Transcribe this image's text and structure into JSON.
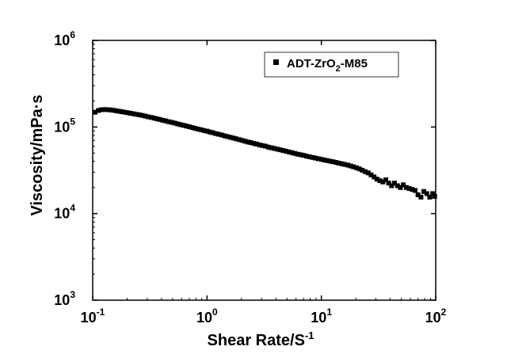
{
  "chart_data": {
    "type": "scatter",
    "xlabel_main": "Shear Rate/S",
    "xlabel_sup": "-1",
    "ylabel": "Viscosity/mPa·s",
    "x_scale": "log",
    "y_scale": "log",
    "xlim": [
      0.1,
      100
    ],
    "ylim": [
      1000,
      1000000
    ],
    "x_ticks": [
      {
        "value": 0.1,
        "base": "10",
        "exp": "-1"
      },
      {
        "value": 1,
        "base": "10",
        "exp": "0"
      },
      {
        "value": 10,
        "base": "10",
        "exp": "1"
      },
      {
        "value": 100,
        "base": "10",
        "exp": "2"
      }
    ],
    "y_ticks": [
      {
        "value": 1000,
        "base": "10",
        "exp": "3"
      },
      {
        "value": 10000,
        "base": "10",
        "exp": "4"
      },
      {
        "value": 100000,
        "base": "10",
        "exp": "5"
      },
      {
        "value": 1000000,
        "base": "10",
        "exp": "6"
      }
    ],
    "grid": false,
    "legend_position": "top-right",
    "series": [
      {
        "name_main": "ADT-ZrO",
        "name_sub": "2",
        "name_tail": "-M85",
        "marker": "square",
        "color": "#000000",
        "points": [
          [
            0.105,
            148000
          ],
          [
            0.112,
            155000
          ],
          [
            0.119,
            158000
          ],
          [
            0.126,
            159000
          ],
          [
            0.134,
            158500
          ],
          [
            0.142,
            157500
          ],
          [
            0.151,
            156000
          ],
          [
            0.16,
            154000
          ],
          [
            0.17,
            152000
          ],
          [
            0.18,
            150000
          ],
          [
            0.191,
            148000
          ],
          [
            0.203,
            146000
          ],
          [
            0.215,
            144000
          ],
          [
            0.228,
            142000
          ],
          [
            0.242,
            140000
          ],
          [
            0.257,
            138000
          ],
          [
            0.272,
            136000
          ],
          [
            0.289,
            133500
          ],
          [
            0.306,
            131000
          ],
          [
            0.325,
            129000
          ],
          [
            0.345,
            126500
          ],
          [
            0.366,
            124000
          ],
          [
            0.388,
            122000
          ],
          [
            0.411,
            119500
          ],
          [
            0.436,
            117500
          ],
          [
            0.463,
            115000
          ],
          [
            0.491,
            113000
          ],
          [
            0.521,
            111000
          ],
          [
            0.553,
            108500
          ],
          [
            0.586,
            106500
          ],
          [
            0.622,
            104500
          ],
          [
            0.66,
            102500
          ],
          [
            0.7,
            100500
          ],
          [
            0.743,
            98500
          ],
          [
            0.788,
            96500
          ],
          [
            0.836,
            94500
          ],
          [
            0.887,
            93000
          ],
          [
            0.941,
            91000
          ],
          [
            1.0,
            89500
          ],
          [
            1.06,
            87500
          ],
          [
            1.12,
            86000
          ],
          [
            1.19,
            84000
          ],
          [
            1.26,
            82500
          ],
          [
            1.34,
            81000
          ],
          [
            1.42,
            79000
          ],
          [
            1.51,
            77500
          ],
          [
            1.6,
            76000
          ],
          [
            1.7,
            74500
          ],
          [
            1.8,
            73000
          ],
          [
            1.91,
            71500
          ],
          [
            2.03,
            70000
          ],
          [
            2.15,
            68500
          ],
          [
            2.28,
            67000
          ],
          [
            2.42,
            66000
          ],
          [
            2.57,
            64500
          ],
          [
            2.72,
            63500
          ],
          [
            2.89,
            62000
          ],
          [
            3.06,
            61000
          ],
          [
            3.25,
            60000
          ],
          [
            3.45,
            58500
          ],
          [
            3.66,
            57500
          ],
          [
            3.88,
            56500
          ],
          [
            4.11,
            55500
          ],
          [
            4.36,
            54500
          ],
          [
            4.63,
            53500
          ],
          [
            4.91,
            52500
          ],
          [
            5.21,
            51500
          ],
          [
            5.53,
            50500
          ],
          [
            5.86,
            49500
          ],
          [
            6.22,
            48500
          ],
          [
            6.6,
            47800
          ],
          [
            7.0,
            47000
          ],
          [
            7.43,
            46000
          ],
          [
            7.88,
            45300
          ],
          [
            8.36,
            44500
          ],
          [
            8.87,
            43800
          ],
          [
            9.41,
            43000
          ],
          [
            10.0,
            42300
          ],
          [
            10.6,
            41600
          ],
          [
            11.2,
            41000
          ],
          [
            11.9,
            40300
          ],
          [
            12.6,
            39700
          ],
          [
            13.4,
            39000
          ],
          [
            14.2,
            38300
          ],
          [
            15.1,
            37600
          ],
          [
            16.0,
            37000
          ],
          [
            17.0,
            36300
          ],
          [
            18.0,
            35500
          ],
          [
            19.1,
            34700
          ],
          [
            20.3,
            33800
          ],
          [
            21.5,
            32800
          ],
          [
            22.8,
            31700
          ],
          [
            24.2,
            30500
          ],
          [
            25.7,
            29500
          ],
          [
            27.2,
            28000
          ],
          [
            28.9,
            26500
          ],
          [
            30.6,
            25000
          ],
          [
            32.5,
            24000
          ],
          [
            34.5,
            23200
          ],
          [
            36.6,
            24500
          ],
          [
            38.8,
            22500
          ],
          [
            41.1,
            21000
          ],
          [
            43.6,
            22500
          ],
          [
            46.3,
            21000
          ],
          [
            49.1,
            20000
          ],
          [
            52.1,
            21500
          ],
          [
            55.3,
            20000
          ],
          [
            58.6,
            19500
          ],
          [
            62.2,
            19000
          ],
          [
            66.0,
            18500
          ],
          [
            70.0,
            16500
          ],
          [
            74.3,
            15500
          ],
          [
            78.8,
            18000
          ],
          [
            83.6,
            17000
          ],
          [
            88.7,
            15500
          ],
          [
            94.1,
            17000
          ],
          [
            98.0,
            15800
          ]
        ]
      }
    ]
  }
}
